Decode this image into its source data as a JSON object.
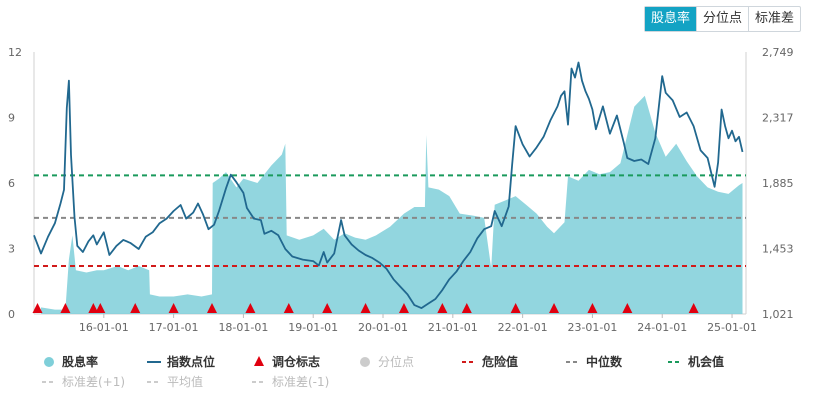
{
  "tabs": [
    {
      "label": "股息率",
      "active": true
    },
    {
      "label": "分位点",
      "active": false
    },
    {
      "label": "标准差",
      "active": false
    }
  ],
  "chart_data": {
    "type": "area",
    "left_axis": {
      "ticks": [
        "12",
        "9",
        "6",
        "3",
        "0"
      ],
      "range": [
        0,
        12
      ]
    },
    "right_axis": {
      "ticks": [
        "2,749",
        "2,317",
        "1,885",
        "1,453",
        "1,021"
      ],
      "range": [
        1021,
        2749
      ]
    },
    "x_ticks": [
      "16-01-01",
      "17-01-01",
      "18-01-01",
      "19-01-01",
      "20-01-01",
      "21-01-01",
      "22-01-01",
      "23-01-01",
      "24-01-01",
      "25-01-01"
    ],
    "x_range": [
      2015.0,
      2025.2
    ],
    "x_tick_values": [
      2016.0,
      2017.0,
      2018.0,
      2019.0,
      2020.0,
      2021.0,
      2022.0,
      2023.0,
      2024.0,
      2025.0
    ],
    "dividend_yield": {
      "name": "股息率",
      "color": "#7fcfd9",
      "points": [
        [
          2015.1,
          0.3
        ],
        [
          2015.3,
          0.2
        ],
        [
          2015.45,
          0.2
        ],
        [
          2015.5,
          2.5
        ],
        [
          2015.55,
          3.6
        ],
        [
          2015.6,
          2.0
        ],
        [
          2015.75,
          1.9
        ],
        [
          2015.9,
          2.0
        ],
        [
          2016.0,
          2.0
        ],
        [
          2016.2,
          2.2
        ],
        [
          2016.35,
          2.0
        ],
        [
          2016.5,
          2.2
        ],
        [
          2016.65,
          2.0
        ],
        [
          2016.66,
          0.9
        ],
        [
          2016.8,
          0.8
        ],
        [
          2017.0,
          0.8
        ],
        [
          2017.2,
          0.9
        ],
        [
          2017.4,
          0.8
        ],
        [
          2017.55,
          0.9
        ],
        [
          2017.56,
          6.0
        ],
        [
          2017.65,
          6.2
        ],
        [
          2017.75,
          6.5
        ],
        [
          2017.9,
          5.8
        ],
        [
          2018.0,
          6.2
        ],
        [
          2018.2,
          6.0
        ],
        [
          2018.3,
          6.4
        ],
        [
          2018.4,
          6.8
        ],
        [
          2018.55,
          7.3
        ],
        [
          2018.6,
          7.8
        ],
        [
          2018.62,
          3.6
        ],
        [
          2018.8,
          3.4
        ],
        [
          2019.0,
          3.6
        ],
        [
          2019.15,
          3.9
        ],
        [
          2019.3,
          3.4
        ],
        [
          2019.45,
          3.7
        ],
        [
          2019.6,
          3.5
        ],
        [
          2019.75,
          3.4
        ],
        [
          2019.9,
          3.6
        ],
        [
          2020.1,
          4.0
        ],
        [
          2020.3,
          4.6
        ],
        [
          2020.45,
          4.9
        ],
        [
          2020.6,
          4.9
        ],
        [
          2020.62,
          8.2
        ],
        [
          2020.65,
          5.8
        ],
        [
          2020.8,
          5.7
        ],
        [
          2020.95,
          5.4
        ],
        [
          2021.1,
          4.6
        ],
        [
          2021.3,
          4.5
        ],
        [
          2021.45,
          4.4
        ],
        [
          2021.55,
          2.1
        ],
        [
          2021.6,
          5.0
        ],
        [
          2021.75,
          5.2
        ],
        [
          2021.9,
          5.4
        ],
        [
          2022.05,
          5.0
        ],
        [
          2022.2,
          4.6
        ],
        [
          2022.35,
          4.0
        ],
        [
          2022.45,
          3.7
        ],
        [
          2022.6,
          4.2
        ],
        [
          2022.65,
          6.3
        ],
        [
          2022.8,
          6.1
        ],
        [
          2022.95,
          6.6
        ],
        [
          2023.1,
          6.4
        ],
        [
          2023.25,
          6.5
        ],
        [
          2023.4,
          6.9
        ],
        [
          2023.5,
          8.2
        ],
        [
          2023.6,
          9.5
        ],
        [
          2023.75,
          10.0
        ],
        [
          2023.9,
          8.3
        ],
        [
          2024.05,
          7.2
        ],
        [
          2024.2,
          7.8
        ],
        [
          2024.35,
          7.0
        ],
        [
          2024.5,
          6.3
        ],
        [
          2024.65,
          5.8
        ],
        [
          2024.8,
          5.6
        ],
        [
          2024.95,
          5.5
        ],
        [
          2025.1,
          5.9
        ],
        [
          2025.15,
          6.0
        ]
      ]
    },
    "index_level": {
      "name": "指数点位",
      "color": "#21688f",
      "points": [
        [
          2015.0,
          1540
        ],
        [
          2015.1,
          1420
        ],
        [
          2015.2,
          1530
        ],
        [
          2015.3,
          1620
        ],
        [
          2015.38,
          1750
        ],
        [
          2015.43,
          1840
        ],
        [
          2015.47,
          2380
        ],
        [
          2015.5,
          2560
        ],
        [
          2015.53,
          2070
        ],
        [
          2015.58,
          1660
        ],
        [
          2015.62,
          1470
        ],
        [
          2015.7,
          1430
        ],
        [
          2015.78,
          1500
        ],
        [
          2015.85,
          1540
        ],
        [
          2015.9,
          1480
        ],
        [
          2016.0,
          1560
        ],
        [
          2016.08,
          1410
        ],
        [
          2016.18,
          1470
        ],
        [
          2016.28,
          1510
        ],
        [
          2016.38,
          1490
        ],
        [
          2016.5,
          1450
        ],
        [
          2016.6,
          1530
        ],
        [
          2016.7,
          1560
        ],
        [
          2016.8,
          1620
        ],
        [
          2016.9,
          1650
        ],
        [
          2017.0,
          1700
        ],
        [
          2017.1,
          1740
        ],
        [
          2017.18,
          1650
        ],
        [
          2017.28,
          1690
        ],
        [
          2017.35,
          1750
        ],
        [
          2017.42,
          1680
        ],
        [
          2017.5,
          1580
        ],
        [
          2017.58,
          1610
        ],
        [
          2017.65,
          1700
        ],
        [
          2017.75,
          1850
        ],
        [
          2017.82,
          1940
        ],
        [
          2017.9,
          1890
        ],
        [
          2018.0,
          1820
        ],
        [
          2018.05,
          1720
        ],
        [
          2018.15,
          1650
        ],
        [
          2018.25,
          1640
        ],
        [
          2018.3,
          1550
        ],
        [
          2018.4,
          1570
        ],
        [
          2018.5,
          1540
        ],
        [
          2018.6,
          1450
        ],
        [
          2018.7,
          1400
        ],
        [
          2018.85,
          1380
        ],
        [
          2019.0,
          1370
        ],
        [
          2019.08,
          1340
        ],
        [
          2019.15,
          1430
        ],
        [
          2019.2,
          1360
        ],
        [
          2019.3,
          1420
        ],
        [
          2019.4,
          1640
        ],
        [
          2019.45,
          1540
        ],
        [
          2019.55,
          1480
        ],
        [
          2019.65,
          1440
        ],
        [
          2019.75,
          1410
        ],
        [
          2019.85,
          1390
        ],
        [
          2019.95,
          1360
        ],
        [
          2020.05,
          1320
        ],
        [
          2020.15,
          1250
        ],
        [
          2020.25,
          1200
        ],
        [
          2020.35,
          1150
        ],
        [
          2020.45,
          1080
        ],
        [
          2020.55,
          1060
        ],
        [
          2020.65,
          1090
        ],
        [
          2020.75,
          1120
        ],
        [
          2020.85,
          1180
        ],
        [
          2020.95,
          1250
        ],
        [
          2021.05,
          1300
        ],
        [
          2021.15,
          1370
        ],
        [
          2021.25,
          1430
        ],
        [
          2021.35,
          1520
        ],
        [
          2021.45,
          1580
        ],
        [
          2021.55,
          1600
        ],
        [
          2021.6,
          1700
        ],
        [
          2021.7,
          1600
        ],
        [
          2021.8,
          1730
        ],
        [
          2021.85,
          2010
        ],
        [
          2021.9,
          2260
        ],
        [
          2022.0,
          2140
        ],
        [
          2022.1,
          2060
        ],
        [
          2022.2,
          2120
        ],
        [
          2022.3,
          2190
        ],
        [
          2022.4,
          2300
        ],
        [
          2022.5,
          2390
        ],
        [
          2022.55,
          2460
        ],
        [
          2022.6,
          2490
        ],
        [
          2022.65,
          2270
        ],
        [
          2022.7,
          2640
        ],
        [
          2022.75,
          2580
        ],
        [
          2022.8,
          2680
        ],
        [
          2022.85,
          2560
        ],
        [
          2022.9,
          2490
        ],
        [
          2022.95,
          2440
        ],
        [
          2023.0,
          2370
        ],
        [
          2023.05,
          2240
        ],
        [
          2023.15,
          2390
        ],
        [
          2023.25,
          2210
        ],
        [
          2023.35,
          2330
        ],
        [
          2023.45,
          2150
        ],
        [
          2023.5,
          2050
        ],
        [
          2023.6,
          2030
        ],
        [
          2023.7,
          2040
        ],
        [
          2023.8,
          2010
        ],
        [
          2023.9,
          2180
        ],
        [
          2023.95,
          2380
        ],
        [
          2024.0,
          2590
        ],
        [
          2024.05,
          2480
        ],
        [
          2024.15,
          2430
        ],
        [
          2024.25,
          2320
        ],
        [
          2024.35,
          2350
        ],
        [
          2024.45,
          2260
        ],
        [
          2024.55,
          2100
        ],
        [
          2024.65,
          2050
        ],
        [
          2024.75,
          1860
        ],
        [
          2024.8,
          2020
        ],
        [
          2024.85,
          2370
        ],
        [
          2024.9,
          2260
        ],
        [
          2024.95,
          2180
        ],
        [
          2025.0,
          2230
        ],
        [
          2025.05,
          2160
        ],
        [
          2025.1,
          2190
        ],
        [
          2025.15,
          2090
        ]
      ]
    },
    "rebalance_markers": [
      2015.05,
      2015.45,
      2015.85,
      2015.95,
      2016.45,
      2017.0,
      2017.55,
      2018.1,
      2018.65,
      2019.2,
      2019.75,
      2020.3,
      2020.85,
      2021.2,
      2021.9,
      2022.45,
      2023.0,
      2023.5,
      2024.45
    ],
    "reference_lines": [
      {
        "name": "危险值",
        "value": 2.2,
        "color": "#d11a1a"
      },
      {
        "name": "中位数",
        "value": 4.4,
        "color": "#888888"
      },
      {
        "name": "机会值",
        "value": 6.35,
        "color": "#1a9a5c"
      }
    ],
    "legend": {
      "row1": [
        {
          "label": "股息率",
          "icon": "circle",
          "color": "#7fcfd9",
          "enabled": true
        },
        {
          "label": "指数点位",
          "icon": "line",
          "color": "#21688f",
          "enabled": true
        },
        {
          "label": "调仓标志",
          "icon": "triangle",
          "color": "#e0000f",
          "enabled": true
        },
        {
          "label": "分位点",
          "icon": "circle",
          "color": "#cccccc",
          "enabled": false
        },
        {
          "label": "危险值",
          "icon": "dash",
          "color": "#d11a1a",
          "enabled": true
        },
        {
          "label": "中位数",
          "icon": "dash",
          "color": "#888888",
          "enabled": true
        },
        {
          "label": "机会值",
          "icon": "dash",
          "color": "#1a9a5c",
          "enabled": true
        }
      ],
      "row2": [
        {
          "label": "标准差(+1)",
          "icon": "dash",
          "color": "#cccccc",
          "enabled": false
        },
        {
          "label": "平均值",
          "icon": "dash",
          "color": "#cccccc",
          "enabled": false
        },
        {
          "label": "标准差(-1)",
          "icon": "dash",
          "color": "#cccccc",
          "enabled": false
        }
      ]
    }
  }
}
